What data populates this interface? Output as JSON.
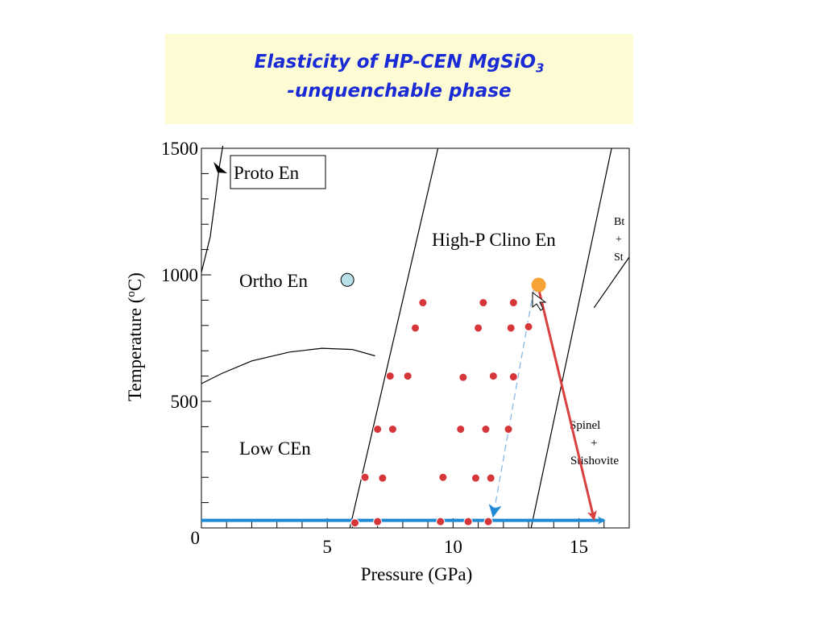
{
  "title": {
    "line1": "Elasticity of HP-CEN MgSiO",
    "line1_subscript": "3",
    "line2": "-unquenchable phase",
    "color": "#1a2bd6",
    "background": "#fdfbd3"
  },
  "chart_data": {
    "type": "scatter",
    "xlabel": "Pressure (GPa)",
    "ylabel": "Temperature (",
    "ylabel_sup": "o",
    "ylabel_end": "C)",
    "xlim": [
      0,
      17
    ],
    "ylim": [
      0,
      1500
    ],
    "xticks": [
      {
        "value": 5,
        "label": "5"
      },
      {
        "value": 10,
        "label": "10"
      },
      {
        "value": 15,
        "label": "15"
      }
    ],
    "yticks": [
      {
        "value": 0,
        "label": "0"
      },
      {
        "value": 500,
        "label": "500"
      },
      {
        "value": 1000,
        "label": "1000"
      },
      {
        "value": 1500,
        "label": "1500"
      }
    ],
    "x_minor_step": 1,
    "y_minor_step": 100,
    "phase_labels": {
      "proto": "Proto En",
      "ortho": "Ortho En",
      "clino": "High-P Clino En",
      "low": "Low CEn",
      "bt": [
        "Bt",
        "+",
        "St"
      ],
      "spinel": [
        "Spinel",
        "+",
        "Stishovite"
      ]
    },
    "boundaries": [
      {
        "name": "proto-ortho",
        "points": [
          [
            0,
            1010
          ],
          [
            0.35,
            1150
          ],
          [
            0.55,
            1300
          ],
          [
            0.7,
            1420
          ],
          [
            0.85,
            1510
          ]
        ]
      },
      {
        "name": "ortho-low",
        "points": [
          [
            0,
            570
          ],
          [
            0.8,
            610
          ],
          [
            2.0,
            660
          ],
          [
            3.5,
            695
          ],
          [
            4.8,
            710
          ],
          [
            6.0,
            705
          ],
          [
            6.9,
            680
          ]
        ]
      },
      {
        "name": "low-clino",
        "points": [
          [
            5.9,
            0
          ],
          [
            9.4,
            1500
          ]
        ]
      },
      {
        "name": "clino-spinel",
        "points": [
          [
            13.1,
            0
          ],
          [
            16.3,
            1500
          ]
        ]
      },
      {
        "name": "st-spinel",
        "points": [
          [
            15.6,
            870
          ],
          [
            17,
            1070
          ]
        ]
      }
    ],
    "ortho_marker": {
      "x": 5.8,
      "y": 980,
      "color": "#b8e0e8"
    },
    "orange_point": {
      "x": 13.4,
      "y": 960,
      "color": "#f7a234"
    },
    "series": [
      {
        "values": [
          [
            8.8,
            890
          ],
          [
            11.2,
            890
          ],
          [
            12.4,
            890
          ],
          [
            8.5,
            790
          ],
          [
            11.0,
            790
          ],
          [
            12.3,
            790
          ],
          [
            13.0,
            795
          ],
          [
            7.5,
            600
          ],
          [
            8.2,
            600
          ],
          [
            10.4,
            595
          ],
          [
            11.6,
            600
          ],
          [
            12.4,
            597
          ],
          [
            7.0,
            390
          ],
          [
            7.6,
            390
          ],
          [
            10.3,
            390
          ],
          [
            11.3,
            390
          ],
          [
            12.2,
            390
          ],
          [
            6.5,
            200
          ],
          [
            7.2,
            197
          ],
          [
            9.6,
            200
          ],
          [
            10.9,
            197
          ],
          [
            11.5,
            197
          ],
          [
            6.1,
            20
          ],
          [
            7.0,
            25
          ],
          [
            9.5,
            25
          ],
          [
            10.6,
            25
          ],
          [
            11.4,
            25
          ]
        ],
        "color": "#d6363a"
      }
    ],
    "arrows": [
      {
        "name": "blue-horizontal",
        "from": [
          0,
          30
        ],
        "to": [
          16.0,
          30
        ],
        "color": "#1f8ad4",
        "style": "solid"
      },
      {
        "name": "red-diagonal",
        "from": [
          13.4,
          945
        ],
        "to": [
          15.6,
          35
        ],
        "color": "#d94040",
        "style": "solid"
      },
      {
        "name": "blue-dashed",
        "from": [
          13.2,
          940
        ],
        "to": [
          11.6,
          50
        ],
        "color": "#8ab8e6",
        "style": "dashed"
      }
    ]
  }
}
